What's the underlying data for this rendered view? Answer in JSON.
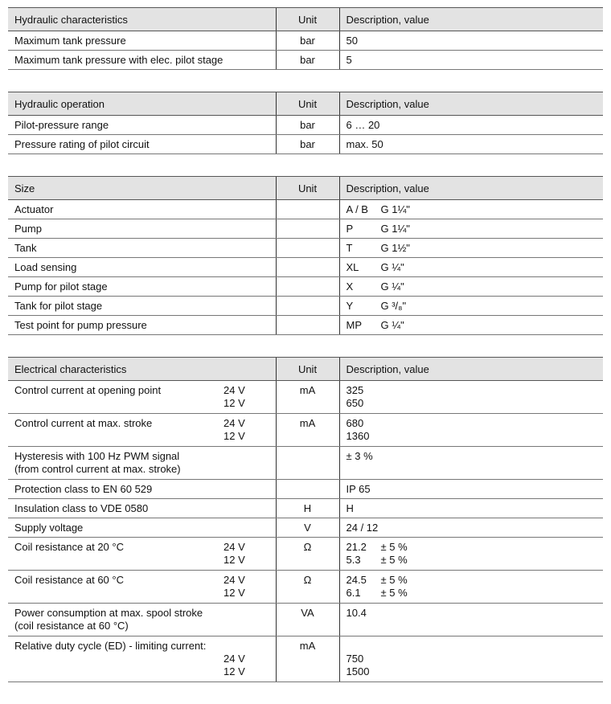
{
  "tables": [
    {
      "title": "Hydraulic characteristics",
      "unit_header": "Unit",
      "desc_header": "Description, value",
      "rows": [
        {
          "label": [
            "Maximum tank pressure"
          ],
          "unit": "bar",
          "desc": [
            [
              "",
              "50"
            ]
          ]
        },
        {
          "label": [
            "Maximum tank pressure with elec. pilot stage"
          ],
          "unit": "bar",
          "desc": [
            [
              "",
              "5"
            ]
          ]
        }
      ]
    },
    {
      "title": "Hydraulic operation",
      "unit_header": "Unit",
      "desc_header": "Description, value",
      "rows": [
        {
          "label": [
            "Pilot-pressure range"
          ],
          "unit": "bar",
          "desc": [
            [
              "",
              "6 … 20"
            ]
          ]
        },
        {
          "label": [
            "Pressure rating of pilot circuit"
          ],
          "unit": "bar",
          "desc": [
            [
              "",
              "max. 50"
            ]
          ]
        }
      ]
    },
    {
      "title": "Size",
      "unit_header": "Unit",
      "desc_header": "Description, value",
      "rows": [
        {
          "label": [
            "Actuator"
          ],
          "unit": "",
          "desc": [
            [
              "A / B",
              "G 1¼\""
            ]
          ]
        },
        {
          "label": [
            "Pump"
          ],
          "unit": "",
          "desc": [
            [
              "P",
              "G 1¼\""
            ]
          ]
        },
        {
          "label": [
            "Tank"
          ],
          "unit": "",
          "desc": [
            [
              "T",
              "G 1½\""
            ]
          ]
        },
        {
          "label": [
            "Load sensing"
          ],
          "unit": "",
          "desc": [
            [
              "XL",
              "G ¼\""
            ]
          ]
        },
        {
          "label": [
            "Pump for pilot stage"
          ],
          "unit": "",
          "desc": [
            [
              "X",
              "G ¼\""
            ]
          ]
        },
        {
          "label": [
            "Tank for pilot stage"
          ],
          "unit": "",
          "desc": [
            [
              "Y",
              "G ³/₈\""
            ]
          ]
        },
        {
          "label": [
            "Test point for pump pressure"
          ],
          "unit": "",
          "desc": [
            [
              "MP",
              "G ¼\""
            ]
          ]
        }
      ]
    },
    {
      "title": "Electrical characteristics",
      "unit_header": "Unit",
      "desc_header": "Description, value",
      "rows": [
        {
          "label": [
            "Control current at opening point",
            ""
          ],
          "volt": [
            "24 V",
            "12 V"
          ],
          "unit": "mA",
          "desc": [
            [
              "",
              "325"
            ],
            [
              "",
              "650"
            ]
          ]
        },
        {
          "label": [
            "Control current at max. stroke",
            ""
          ],
          "volt": [
            "24 V",
            "12 V"
          ],
          "unit": "mA",
          "desc": [
            [
              "",
              "680"
            ],
            [
              "",
              "1360"
            ]
          ]
        },
        {
          "label": [
            "Hysteresis with 100 Hz PWM signal",
            "(from control current at max. stroke)"
          ],
          "unit": "",
          "desc": [
            [
              "",
              "± 3 %"
            ],
            [
              "",
              ""
            ]
          ]
        },
        {
          "label": [
            "Protection class to EN 60 529"
          ],
          "unit": "",
          "desc": [
            [
              "",
              "IP 65"
            ]
          ]
        },
        {
          "label": [
            "Insulation class to VDE 0580"
          ],
          "unit": "H",
          "desc": [
            [
              "",
              "H"
            ]
          ]
        },
        {
          "label": [
            "Supply voltage"
          ],
          "unit": "V",
          "desc": [
            [
              "",
              "24  / 12"
            ]
          ]
        },
        {
          "label": [
            "Coil resistance at 20 °C",
            ""
          ],
          "volt": [
            "24 V",
            "12 V"
          ],
          "unit": "Ω",
          "desc": [
            [
              "21.2",
              "± 5 %"
            ],
            [
              "5.3",
              "± 5 %"
            ]
          ]
        },
        {
          "label": [
            "Coil resistance at 60 °C",
            ""
          ],
          "volt": [
            "24 V",
            "12 V"
          ],
          "unit": "Ω",
          "desc": [
            [
              "24.5",
              "± 5 %"
            ],
            [
              "6.1",
              "± 5 %"
            ]
          ]
        },
        {
          "label": [
            "Power consumption at max. spool stroke",
            "(coil resistance at 60 °C)"
          ],
          "unit": "VA",
          "desc": [
            [
              "",
              "10.4"
            ],
            [
              "",
              ""
            ]
          ]
        },
        {
          "label": [
            "Relative duty cycle (ED) - limiting current:",
            "",
            ""
          ],
          "volt": [
            "",
            "24 V",
            "12 V"
          ],
          "unit": "mA",
          "desc": [
            [
              "",
              ""
            ],
            [
              "",
              "750"
            ],
            [
              "",
              "1500"
            ]
          ]
        }
      ]
    }
  ]
}
